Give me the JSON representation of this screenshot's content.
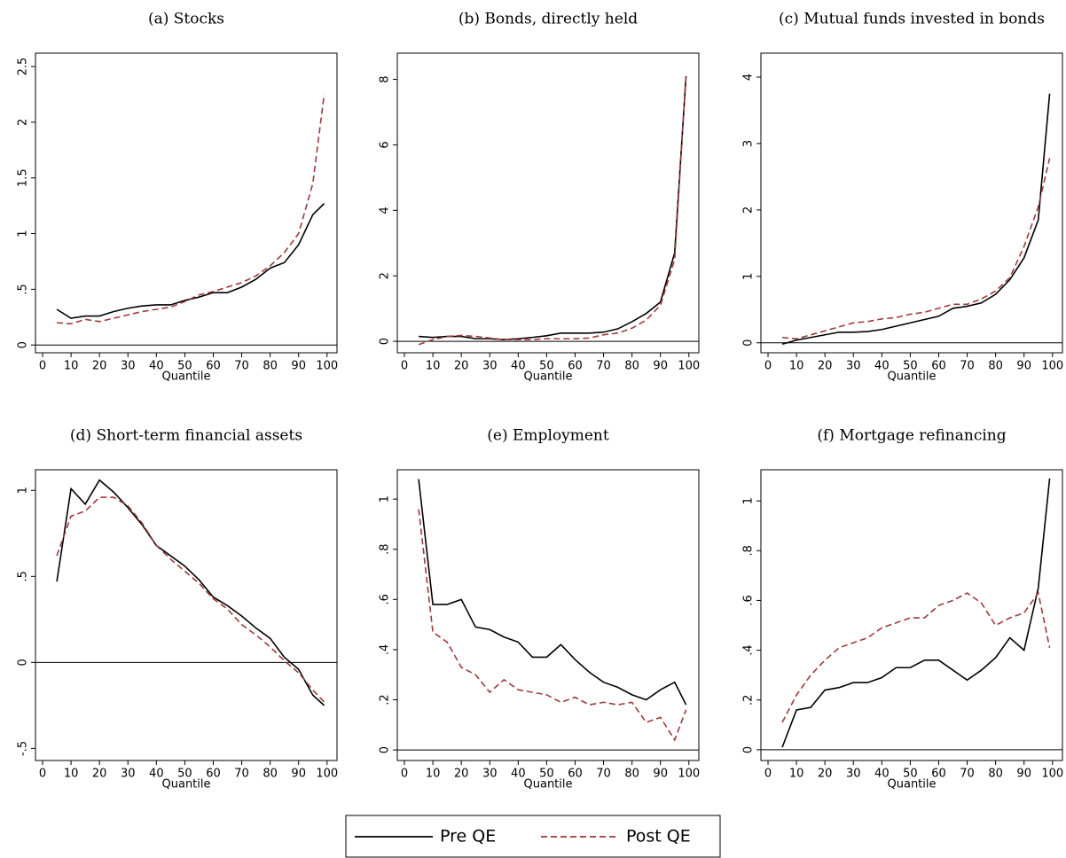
{
  "chart_data": [
    {
      "type": "line",
      "title": "(a) Stocks",
      "x_label": "Quantile",
      "x": [
        5,
        10,
        15,
        20,
        25,
        30,
        35,
        40,
        45,
        50,
        55,
        60,
        65,
        70,
        75,
        80,
        85,
        90,
        95,
        99
      ],
      "series": [
        {
          "name": "Pre QE",
          "color": "#000000",
          "dash": "solid",
          "values": [
            0.32,
            0.24,
            0.26,
            0.26,
            0.3,
            0.33,
            0.35,
            0.36,
            0.36,
            0.4,
            0.43,
            0.47,
            0.47,
            0.52,
            0.59,
            0.69,
            0.74,
            0.9,
            1.17,
            1.27
          ]
        },
        {
          "name": "Post QE",
          "color": "#9e3a3a",
          "dash": "dashed",
          "values": [
            0.2,
            0.19,
            0.23,
            0.21,
            0.24,
            0.27,
            0.3,
            0.32,
            0.34,
            0.39,
            0.45,
            0.48,
            0.52,
            0.56,
            0.62,
            0.71,
            0.83,
            1.0,
            1.45,
            2.25
          ]
        }
      ],
      "xlim": [
        -2.5,
        103.5
      ],
      "xticks": [
        0,
        10,
        20,
        30,
        40,
        50,
        60,
        70,
        80,
        90,
        100
      ],
      "ylim": [
        -0.07,
        2.62
      ],
      "yticks": [
        0,
        {
          "value": 0.5,
          "label": ".5"
        },
        1,
        1.5,
        2,
        2.5
      ],
      "hline": 0
    },
    {
      "type": "line",
      "title": "(b) Bonds, directly held",
      "x_label": "Quantile",
      "x": [
        5,
        10,
        15,
        20,
        25,
        30,
        35,
        40,
        45,
        50,
        55,
        60,
        65,
        70,
        75,
        80,
        85,
        90,
        95,
        99
      ],
      "series": [
        {
          "name": "Pre QE",
          "color": "#000000",
          "dash": "solid",
          "values": [
            0.15,
            0.12,
            0.15,
            0.15,
            0.08,
            0.08,
            0.05,
            0.08,
            0.12,
            0.17,
            0.25,
            0.25,
            0.25,
            0.28,
            0.38,
            0.6,
            0.85,
            1.2,
            2.7,
            8.1
          ]
        },
        {
          "name": "Post QE",
          "color": "#9e3a3a",
          "dash": "dashed",
          "values": [
            -0.1,
            0.05,
            0.15,
            0.18,
            0.15,
            0.1,
            0.05,
            0.05,
            0.05,
            0.08,
            0.08,
            0.08,
            0.1,
            0.2,
            0.25,
            0.4,
            0.65,
            1.1,
            2.5,
            8.15
          ]
        }
      ],
      "xlim": [
        -2.5,
        103.5
      ],
      "xticks": [
        0,
        10,
        20,
        30,
        40,
        50,
        60,
        70,
        80,
        90,
        100
      ],
      "ylim": [
        -0.35,
        8.8
      ],
      "yticks": [
        0,
        2,
        4,
        6,
        8
      ],
      "hline": 0
    },
    {
      "type": "line",
      "title": "(c) Mutual funds invested in bonds",
      "x_label": "Quantile",
      "x": [
        5,
        10,
        15,
        20,
        25,
        30,
        35,
        40,
        45,
        50,
        55,
        60,
        65,
        70,
        75,
        80,
        85,
        90,
        95,
        99
      ],
      "series": [
        {
          "name": "Pre QE",
          "color": "#000000",
          "dash": "solid",
          "values": [
            -0.02,
            0.04,
            0.08,
            0.12,
            0.16,
            0.16,
            0.17,
            0.2,
            0.25,
            0.3,
            0.35,
            0.4,
            0.52,
            0.55,
            0.6,
            0.73,
            0.95,
            1.28,
            1.85,
            3.75
          ]
        },
        {
          "name": "Post QE",
          "color": "#9e3a3a",
          "dash": "dashed",
          "values": [
            0.08,
            0.06,
            0.12,
            0.18,
            0.24,
            0.3,
            0.32,
            0.36,
            0.38,
            0.43,
            0.46,
            0.52,
            0.58,
            0.58,
            0.66,
            0.78,
            0.98,
            1.45,
            2.05,
            2.78
          ]
        }
      ],
      "xlim": [
        -2.5,
        103.5
      ],
      "xticks": [
        0,
        10,
        20,
        30,
        40,
        50,
        60,
        70,
        80,
        90,
        100
      ],
      "ylim": [
        -0.15,
        4.36
      ],
      "yticks": [
        0,
        1,
        2,
        3,
        4
      ],
      "hline": 0
    },
    {
      "type": "line",
      "title": "(d) Short-term financial assets",
      "x_label": "Quantile",
      "x": [
        5,
        10,
        15,
        20,
        25,
        30,
        35,
        40,
        45,
        50,
        55,
        60,
        65,
        70,
        75,
        80,
        85,
        90,
        95,
        99
      ],
      "series": [
        {
          "name": "Pre QE",
          "color": "#000000",
          "dash": "solid",
          "values": [
            0.47,
            1.01,
            0.92,
            1.06,
            0.99,
            0.9,
            0.8,
            0.68,
            0.62,
            0.56,
            0.48,
            0.38,
            0.33,
            0.27,
            0.2,
            0.14,
            0.03,
            -0.04,
            -0.19,
            -0.25
          ]
        },
        {
          "name": "Post QE",
          "color": "#9e3a3a",
          "dash": "dashed",
          "values": [
            0.62,
            0.85,
            0.88,
            0.96,
            0.96,
            0.91,
            0.81,
            0.68,
            0.6,
            0.53,
            0.46,
            0.37,
            0.31,
            0.22,
            0.16,
            0.09,
            0.01,
            -0.06,
            -0.16,
            -0.23
          ]
        }
      ],
      "xlim": [
        -2.5,
        103.5
      ],
      "xticks": [
        0,
        10,
        20,
        30,
        40,
        50,
        60,
        70,
        80,
        90,
        100
      ],
      "ylim": [
        -0.57,
        1.12
      ],
      "yticks": [
        {
          "value": -0.5,
          "label": "-.5"
        },
        0,
        {
          "value": 0.5,
          "label": ".5"
        },
        1
      ],
      "hline": 0
    },
    {
      "type": "line",
      "title": "(e) Employment",
      "x_label": "Quantile",
      "x": [
        5,
        10,
        15,
        20,
        25,
        30,
        35,
        40,
        45,
        50,
        55,
        60,
        65,
        70,
        75,
        80,
        85,
        90,
        95,
        99
      ],
      "series": [
        {
          "name": "Pre QE",
          "color": "#000000",
          "dash": "solid",
          "values": [
            1.08,
            0.58,
            0.58,
            0.6,
            0.49,
            0.48,
            0.45,
            0.43,
            0.37,
            0.37,
            0.42,
            0.36,
            0.31,
            0.27,
            0.25,
            0.22,
            0.2,
            0.24,
            0.27,
            0.18
          ]
        },
        {
          "name": "Post QE",
          "color": "#9e3a3a",
          "dash": "dashed",
          "values": [
            0.96,
            0.47,
            0.43,
            0.33,
            0.3,
            0.23,
            0.28,
            0.24,
            0.23,
            0.22,
            0.19,
            0.21,
            0.18,
            0.19,
            0.18,
            0.19,
            0.11,
            0.13,
            0.04,
            0.16
          ]
        }
      ],
      "xlim": [
        -2.5,
        103.5
      ],
      "xticks": [
        0,
        10,
        20,
        30,
        40,
        50,
        60,
        70,
        80,
        90,
        100
      ],
      "ylim": [
        -0.042,
        1.117
      ],
      "yticks": [
        0,
        {
          "value": 0.2,
          "label": ".2"
        },
        {
          "value": 0.4,
          "label": ".4"
        },
        {
          "value": 0.6,
          "label": ".6"
        },
        {
          "value": 0.8,
          "label": ".8"
        },
        1
      ],
      "hline": 0
    },
    {
      "type": "line",
      "title": "(f) Mortgage refinancing",
      "x_label": "Quantile",
      "x": [
        5,
        10,
        15,
        20,
        25,
        30,
        35,
        40,
        45,
        50,
        55,
        60,
        65,
        70,
        75,
        80,
        85,
        90,
        95,
        99
      ],
      "series": [
        {
          "name": "Pre QE",
          "color": "#000000",
          "dash": "solid",
          "values": [
            0.01,
            0.16,
            0.17,
            0.24,
            0.25,
            0.27,
            0.27,
            0.29,
            0.33,
            0.33,
            0.36,
            0.36,
            0.32,
            0.28,
            0.32,
            0.37,
            0.45,
            0.4,
            0.65,
            1.09
          ]
        },
        {
          "name": "Post QE",
          "color": "#9e3a3a",
          "dash": "dashed",
          "values": [
            0.11,
            0.22,
            0.3,
            0.36,
            0.41,
            0.43,
            0.45,
            0.49,
            0.51,
            0.53,
            0.53,
            0.58,
            0.6,
            0.63,
            0.59,
            0.5,
            0.53,
            0.55,
            0.63,
            0.41
          ]
        }
      ],
      "xlim": [
        -2.5,
        103.5
      ],
      "xticks": [
        0,
        10,
        20,
        30,
        40,
        50,
        60,
        70,
        80,
        90,
        100
      ],
      "ylim": [
        -0.043,
        1.125
      ],
      "yticks": [
        0,
        {
          "value": 0.2,
          "label": ".2"
        },
        {
          "value": 0.4,
          "label": ".4"
        },
        {
          "value": 0.6,
          "label": ".6"
        },
        {
          "value": 0.8,
          "label": ".8"
        },
        1
      ],
      "hline": 0
    }
  ]
}
